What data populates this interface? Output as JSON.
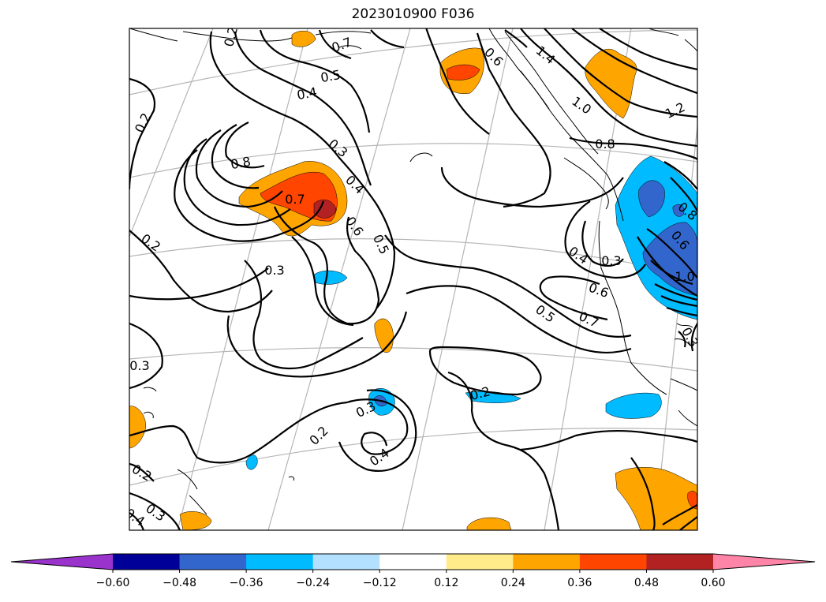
{
  "title": "2023010900 F036",
  "colorbar": {
    "colors": [
      "#9933cc",
      "#000099",
      "#3366cc",
      "#00bbff",
      "#b3e0ff",
      "#ffffff",
      "#ffeb8a",
      "#ffa500",
      "#ff4500",
      "#b22222",
      "#ff85a8"
    ],
    "ticks": [
      "-0.60",
      "-0.48",
      "-0.36",
      "-0.24",
      "-0.12",
      "0.12",
      "0.24",
      "0.36",
      "0.48",
      "0.60"
    ]
  },
  "contour_labels": [
    "0.2",
    "0.7",
    "0.5",
    "0.4",
    "0.2",
    "0.8",
    "0.3",
    "0.7",
    "0.4",
    "0.6",
    "0.5",
    "0.2",
    "0.3",
    "0.3",
    "0.6",
    "1.4",
    "1.0",
    "1.2",
    "0.8",
    "0.4",
    "0.3",
    "0.6",
    "0.7",
    "0.5",
    "0.2",
    "0.3",
    "0.2",
    "0.4",
    "0.2",
    "0.3",
    "0.4",
    "0.8",
    "0.6",
    "1.0",
    "0.3"
  ]
}
